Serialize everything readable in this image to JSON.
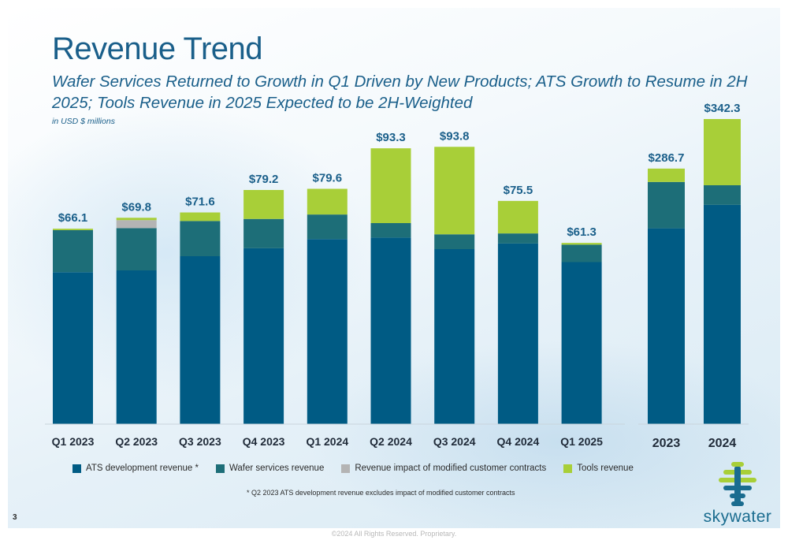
{
  "slide": {
    "title": "Revenue Trend",
    "subtitle": "Wafer Services Returned to Growth in Q1 Driven by New Products; ATS Growth to Resume in 2H 2025; Tools Revenue in 2025 Expected to be 2H-Weighted",
    "units_note": "in USD $ millions",
    "footnote": "*  Q2 2023 ATS development revenue excludes impact of modified customer contracts",
    "page_number": "3",
    "logo_text": "skywater",
    "copyright": "©2024 All Rights Reserved. Proprietary."
  },
  "legend": [
    {
      "label": "ATS development revenue *",
      "color": "#005b84"
    },
    {
      "label": "Wafer services revenue",
      "color": "#1d6e78"
    },
    {
      "label": "Revenue impact of modified customer contracts",
      "color": "#b4b4b4"
    },
    {
      "label": "Tools revenue",
      "color": "#a8cf38"
    }
  ],
  "chart_data": [
    {
      "type": "bar",
      "stacked": true,
      "categories": [
        "Q1 2023",
        "Q2 2023",
        "Q3 2023",
        "Q4 2023",
        "Q1 2024",
        "Q2 2024",
        "Q3 2024",
        "Q4 2024",
        "Q1 2025"
      ],
      "series": [
        {
          "name": "ATS development revenue *",
          "color": "#005b84",
          "values": [
            51.4,
            52.0,
            56.8,
            59.5,
            62.6,
            63.1,
            59.2,
            61.1,
            54.8
          ]
        },
        {
          "name": "Wafer services revenue",
          "color": "#1d6e78",
          "values": [
            14.2,
            14.3,
            11.9,
            9.9,
            8.3,
            4.9,
            5.0,
            3.4,
            5.9
          ]
        },
        {
          "name": "Revenue impact of modified customer contracts",
          "color": "#b4b4b4",
          "values": [
            0,
            2.7,
            0,
            0,
            0,
            0,
            0,
            0,
            0
          ]
        },
        {
          "name": "Tools revenue",
          "color": "#a8cf38",
          "values": [
            0.5,
            0.8,
            2.9,
            9.8,
            8.7,
            25.3,
            29.6,
            11.0,
            0.6
          ]
        }
      ],
      "totals": [
        "$66.1",
        "$69.8",
        "$71.6",
        "$79.2",
        "$79.6",
        "$93.3",
        "$93.8",
        "$75.5",
        "$61.3"
      ],
      "ylim": [
        0,
        100
      ]
    },
    {
      "type": "bar",
      "stacked": true,
      "categories": [
        "2023",
        "2024"
      ],
      "series": [
        {
          "name": "ATS development revenue *",
          "color": "#005b84",
          "values": [
            219.7,
            246.0
          ]
        },
        {
          "name": "Wafer services revenue",
          "color": "#1d6e78",
          "values": [
            52.0,
            22.0
          ]
        },
        {
          "name": "Revenue impact of modified customer contracts",
          "color": "#b4b4b4",
          "values": [
            0,
            0
          ]
        },
        {
          "name": "Tools revenue",
          "color": "#a8cf38",
          "values": [
            15.0,
            74.3
          ]
        }
      ],
      "totals": [
        "$286.7",
        "$342.3"
      ],
      "ylim": [
        0,
        342.3
      ]
    }
  ]
}
